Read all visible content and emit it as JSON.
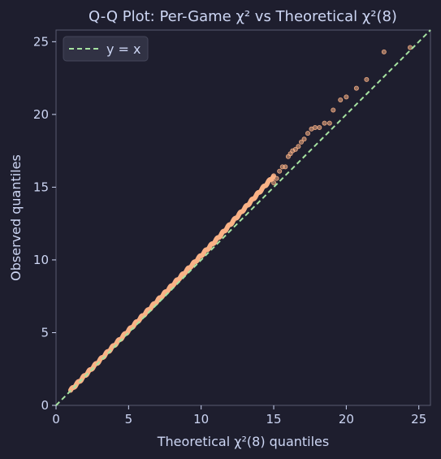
{
  "chart_data": {
    "type": "scatter",
    "title": "Q-Q Plot: Per-Game χ² vs Theoretical χ²(8)",
    "xlabel": "Theoretical χ²(8) quantiles",
    "ylabel": "Observed quantiles",
    "xlim": [
      0,
      25.8
    ],
    "ylim": [
      0,
      25.8
    ],
    "xticks": [
      0,
      5,
      10,
      15,
      20,
      25
    ],
    "yticks": [
      0,
      5,
      10,
      15,
      20,
      25
    ],
    "grid": false,
    "legend": {
      "placement": "top-left",
      "entries": [
        {
          "label": "y = x",
          "style": "dashed-line",
          "color": "#a6e3a1"
        }
      ]
    },
    "reference_line": {
      "label": "y = x",
      "color": "#a6e3a1"
    },
    "points_color": "#fab387",
    "colors": {
      "background": "#1e1e2e",
      "axes_face": "#1e1e2e",
      "spine": "#585b70",
      "text": "#cdd6f4",
      "legend_face": "#313244"
    },
    "tail_points": [
      [
        15.0,
        15.3
      ],
      [
        15.2,
        15.6
      ],
      [
        15.4,
        16.1
      ],
      [
        15.6,
        16.4
      ],
      [
        15.8,
        16.4
      ],
      [
        16.0,
        17.1
      ],
      [
        16.15,
        17.3
      ],
      [
        16.3,
        17.5
      ],
      [
        16.5,
        17.6
      ],
      [
        16.7,
        17.8
      ],
      [
        16.9,
        18.1
      ],
      [
        17.1,
        18.3
      ],
      [
        17.35,
        18.7
      ],
      [
        17.6,
        19.0
      ],
      [
        17.85,
        19.1
      ],
      [
        18.15,
        19.1
      ],
      [
        18.5,
        19.4
      ],
      [
        18.85,
        19.4
      ],
      [
        19.1,
        20.3
      ],
      [
        19.6,
        21.0
      ],
      [
        20.0,
        21.2
      ],
      [
        20.7,
        21.8
      ],
      [
        21.4,
        22.4
      ],
      [
        22.6,
        24.3
      ],
      [
        24.4,
        24.6
      ]
    ]
  }
}
